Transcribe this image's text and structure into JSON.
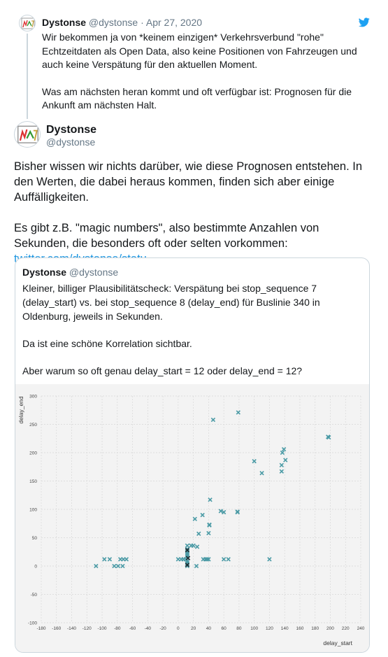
{
  "parent_tweet": {
    "author_name": "Dystonse",
    "author_handle": "@dystonse",
    "separator": "·",
    "date": "Apr 27, 2020",
    "paragraphs": [
      "Wir bekommen ja von *keinem einzigen* Verkehrsverbund \"rohe\" Echtzeitdaten als Open Data, also keine Positionen von Fahrzeugen und auch keine Verspätung für den aktuellen Moment.",
      "Was am nächsten heran kommt und oft verfügbar ist: Prognosen für die Ankunft am nächsten Halt."
    ],
    "icon": "twitter-bird-icon"
  },
  "main_tweet": {
    "author_name": "Dystonse",
    "author_handle": "@dystonse",
    "paragraph_1": "Bisher wissen wir nichts darüber, wie diese Prognosen entstehen. In den Werten, die dabei heraus kommen, finden sich aber einige Auffälligkeiten.",
    "paragraph_2_text": "Es gibt z.B. \"magic numbers\", also bestimmte Anzahlen von Sekunden, die besonders oft oder selten vorkommen: ",
    "paragraph_2_link": "twitter.com/dystonse/statu…"
  },
  "quoted_tweet": {
    "author_name": "Dystonse",
    "author_handle": "@dystonse",
    "paragraphs": [
      "Kleiner, billiger Plausibilitätscheck: Verspätung bei stop_sequence 7 (delay_start) vs. bei stop_sequence 8 (delay_end) für Buslinie 340 in Oldenburg, jeweils in Sekunden.",
      "Da ist eine schöne Korrelation sichtbar.",
      "Aber warum so oft genau delay_start = 12 oder delay_end = 12?"
    ]
  },
  "chart_data": {
    "type": "scatter",
    "xlabel": "delay_start",
    "ylabel": "delay_end",
    "xlim": [
      -180,
      240
    ],
    "ylim": [
      -100,
      300
    ],
    "x_ticks": [
      -180,
      -160,
      -140,
      -120,
      -100,
      -80,
      -60,
      -40,
      -20,
      0,
      20,
      40,
      60,
      80,
      100,
      120,
      140,
      160,
      180,
      200,
      220,
      240
    ],
    "y_ticks": [
      -100,
      -50,
      0,
      50,
      100,
      150,
      200,
      250,
      300
    ],
    "grid": true,
    "marker": "x",
    "color": "#4a9aa5",
    "dark_color": "#1d2a2e",
    "points": [
      {
        "x": -108,
        "y": 0
      },
      {
        "x": -97,
        "y": 12
      },
      {
        "x": -90,
        "y": 12
      },
      {
        "x": -84,
        "y": 0
      },
      {
        "x": -79,
        "y": 0
      },
      {
        "x": -76,
        "y": 12
      },
      {
        "x": -73,
        "y": 0
      },
      {
        "x": -72,
        "y": 12
      },
      {
        "x": -68,
        "y": 12
      },
      {
        "x": 0,
        "y": 12
      },
      {
        "x": 4,
        "y": 12
      },
      {
        "x": 7,
        "y": 12
      },
      {
        "x": 10,
        "y": 12
      },
      {
        "x": 12,
        "y": 0
      },
      {
        "x": 12,
        "y": 3
      },
      {
        "x": 12,
        "y": 6
      },
      {
        "x": 12,
        "y": 9
      },
      {
        "x": 12,
        "y": 15
      },
      {
        "x": 12,
        "y": 18
      },
      {
        "x": 12,
        "y": 21
      },
      {
        "x": 12,
        "y": 24
      },
      {
        "x": 12,
        "y": 27
      },
      {
        "x": 12,
        "y": 30
      },
      {
        "x": 12,
        "y": 36
      },
      {
        "x": 17,
        "y": 36
      },
      {
        "x": 20,
        "y": 36
      },
      {
        "x": 22,
        "y": 83
      },
      {
        "x": 24,
        "y": 0
      },
      {
        "x": 25,
        "y": 34
      },
      {
        "x": 27,
        "y": 57
      },
      {
        "x": 32,
        "y": 90
      },
      {
        "x": 33,
        "y": 12
      },
      {
        "x": 36,
        "y": 12
      },
      {
        "x": 38,
        "y": 12
      },
      {
        "x": 40,
        "y": 12
      },
      {
        "x": 40,
        "y": 58
      },
      {
        "x": 41,
        "y": 73
      },
      {
        "x": 41,
        "y": 72
      },
      {
        "x": 42,
        "y": 117
      },
      {
        "x": 46,
        "y": 258
      },
      {
        "x": 56,
        "y": 97
      },
      {
        "x": 60,
        "y": 95
      },
      {
        "x": 60,
        "y": 12
      },
      {
        "x": 66,
        "y": 12
      },
      {
        "x": 78,
        "y": 96
      },
      {
        "x": 78,
        "y": 95
      },
      {
        "x": 79,
        "y": 271
      },
      {
        "x": 100,
        "y": 185
      },
      {
        "x": 110,
        "y": 164
      },
      {
        "x": 120,
        "y": 12
      },
      {
        "x": 136,
        "y": 167
      },
      {
        "x": 136,
        "y": 178
      },
      {
        "x": 137,
        "y": 200
      },
      {
        "x": 139,
        "y": 206
      },
      {
        "x": 141,
        "y": 187
      },
      {
        "x": 197,
        "y": 228
      },
      {
        "x": 198,
        "y": 227
      }
    ],
    "dark_points": [
      {
        "x": 12,
        "y": 2
      },
      {
        "x": 12,
        "y": 28
      },
      {
        "x": 13,
        "y": 14
      }
    ]
  }
}
